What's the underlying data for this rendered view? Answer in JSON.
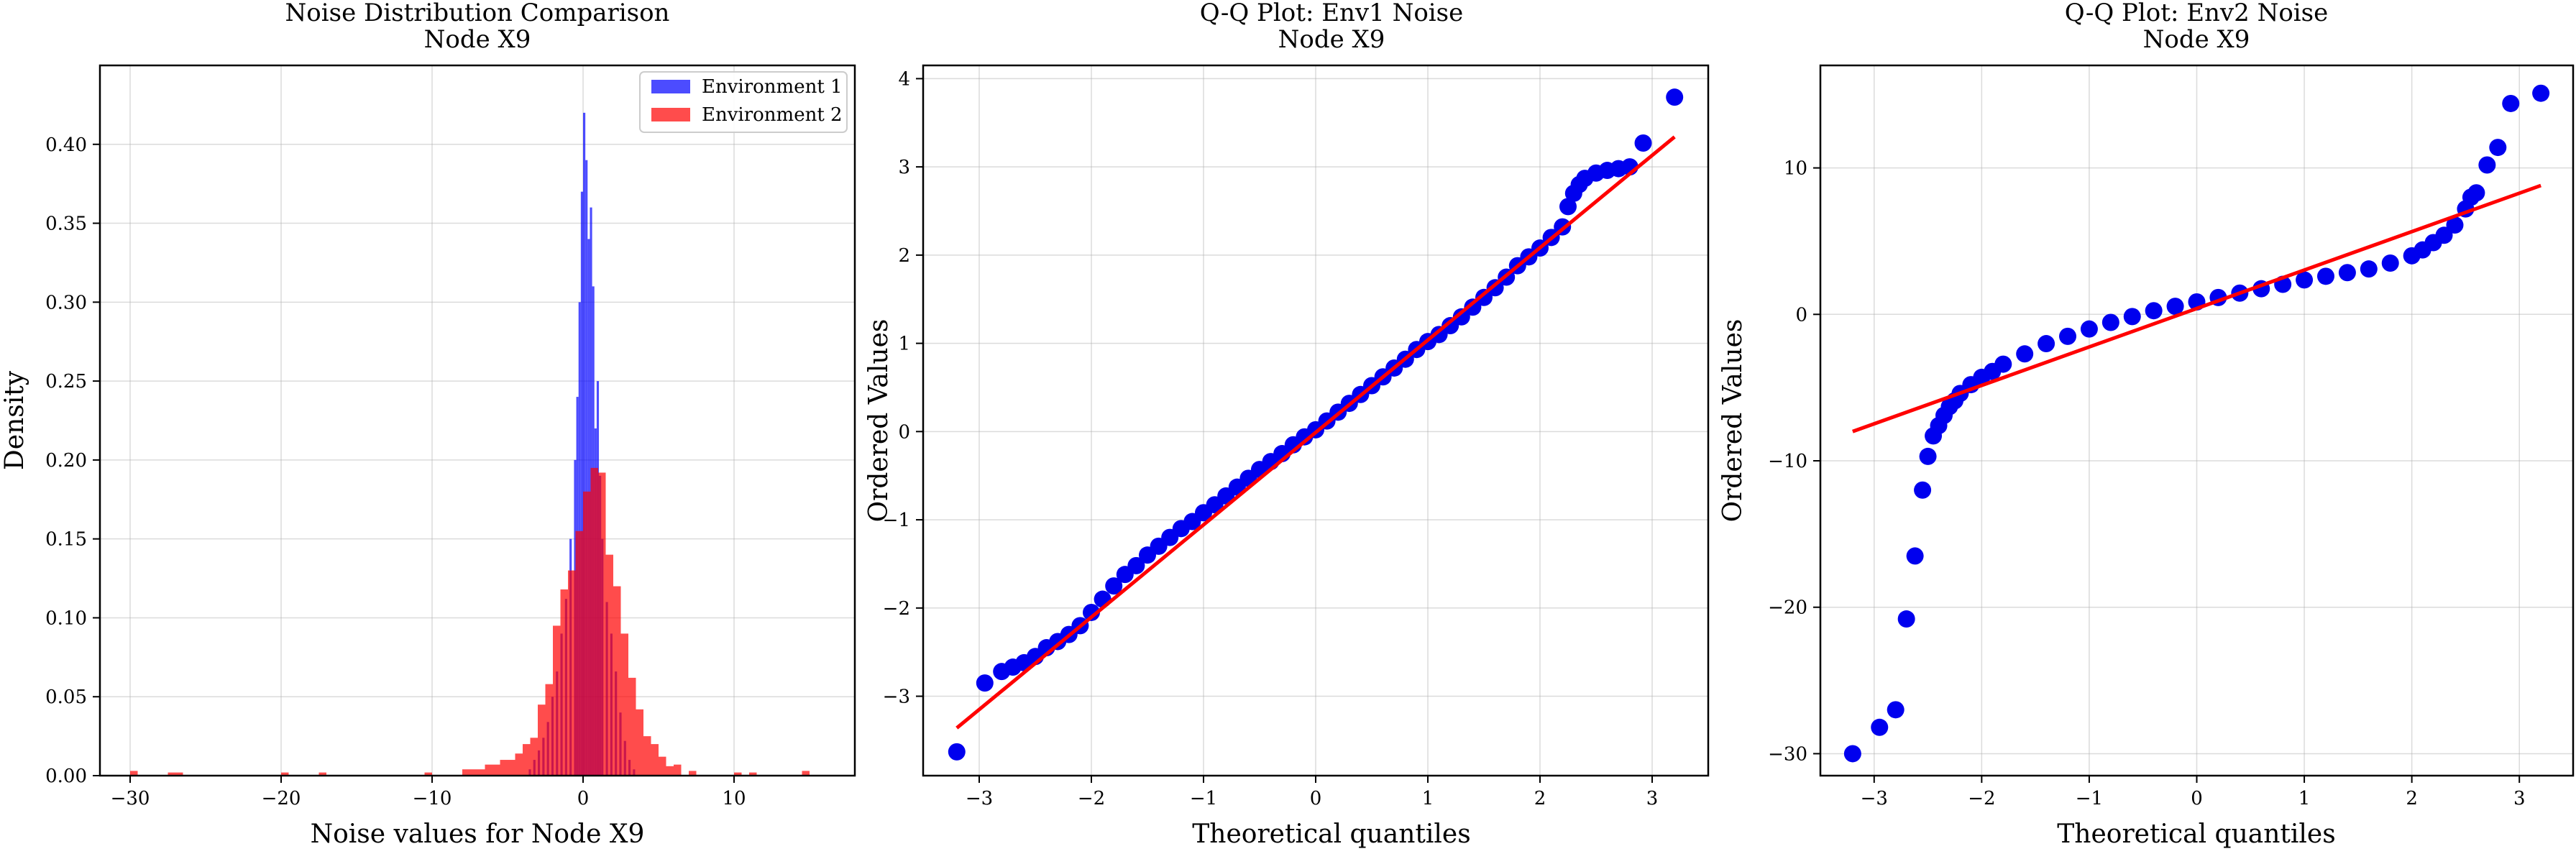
{
  "colors": {
    "env1": "#0000ff",
    "env2": "#ff0000",
    "grid": "#b0b0b0",
    "fit_line": "#ff0000",
    "points": "#0000ee"
  },
  "chart_data": [
    {
      "type": "bar",
      "subtype": "histogram-overlay",
      "title": "Noise Distribution Comparison",
      "subtitle": "Node X9",
      "xlabel": "Noise values for Node X9",
      "ylabel": "Density",
      "xlim": [
        -32,
        18
      ],
      "ylim": [
        0,
        0.45
      ],
      "xticks": [
        -30,
        -20,
        -10,
        0,
        10
      ],
      "xtick_labels": [
        "−30",
        "−20",
        "−10",
        "0",
        "10"
      ],
      "yticks": [
        0.0,
        0.05,
        0.1,
        0.15,
        0.2,
        0.25,
        0.3,
        0.35,
        0.4
      ],
      "ytick_labels": [
        "0.00",
        "0.05",
        "0.10",
        "0.15",
        "0.20",
        "0.25",
        "0.30",
        "0.35",
        "0.40"
      ],
      "grid": true,
      "legend_position": "top-right",
      "series": [
        {
          "name": "Environment 1",
          "color_key": "env1",
          "alpha": 0.7,
          "bins": [
            [
              -3.6,
              0.004
            ],
            [
              -3.3,
              0.01
            ],
            [
              -3.0,
              0.016
            ],
            [
              -2.7,
              0.024
            ],
            [
              -2.4,
              0.034
            ],
            [
              -2.1,
              0.05
            ],
            [
              -1.8,
              0.066
            ],
            [
              -1.5,
              0.09
            ],
            [
              -1.2,
              0.112
            ],
            [
              -0.9,
              0.15
            ],
            [
              -0.6,
              0.2
            ],
            [
              -0.45,
              0.24
            ],
            [
              -0.3,
              0.3
            ],
            [
              -0.15,
              0.37
            ],
            [
              0.0,
              0.42
            ],
            [
              0.15,
              0.39
            ],
            [
              0.3,
              0.34
            ],
            [
              0.45,
              0.36
            ],
            [
              0.6,
              0.31
            ],
            [
              0.75,
              0.22
            ],
            [
              0.9,
              0.25
            ],
            [
              1.05,
              0.19
            ],
            [
              1.2,
              0.15
            ],
            [
              1.5,
              0.11
            ],
            [
              1.8,
              0.09
            ],
            [
              2.1,
              0.066
            ],
            [
              2.4,
              0.04
            ],
            [
              2.7,
              0.022
            ],
            [
              3.0,
              0.01
            ],
            [
              3.3,
              0.004
            ]
          ],
          "bin_width": 0.15
        },
        {
          "name": "Environment 2",
          "color_key": "env2",
          "alpha": 0.7,
          "bins": [
            [
              -30.0,
              0.003
            ],
            [
              -27.5,
              0.002
            ],
            [
              -27.0,
              0.002
            ],
            [
              -20.0,
              0.002
            ],
            [
              -17.5,
              0.002
            ],
            [
              -10.5,
              0.002
            ],
            [
              -8.0,
              0.004
            ],
            [
              -7.5,
              0.004
            ],
            [
              -7.0,
              0.004
            ],
            [
              -6.5,
              0.007
            ],
            [
              -6.0,
              0.007
            ],
            [
              -5.5,
              0.01
            ],
            [
              -5.0,
              0.01
            ],
            [
              -4.5,
              0.014
            ],
            [
              -4.0,
              0.02
            ],
            [
              -3.5,
              0.024
            ],
            [
              -3.0,
              0.045
            ],
            [
              -2.5,
              0.058
            ],
            [
              -2.0,
              0.095
            ],
            [
              -1.5,
              0.118
            ],
            [
              -1.0,
              0.13
            ],
            [
              -0.5,
              0.155
            ],
            [
              0.0,
              0.18
            ],
            [
              0.5,
              0.195
            ],
            [
              1.0,
              0.192
            ],
            [
              1.5,
              0.14
            ],
            [
              2.0,
              0.12
            ],
            [
              2.5,
              0.09
            ],
            [
              3.0,
              0.062
            ],
            [
              3.5,
              0.042
            ],
            [
              4.0,
              0.025
            ],
            [
              4.5,
              0.02
            ],
            [
              5.0,
              0.012
            ],
            [
              5.5,
              0.006
            ],
            [
              6.0,
              0.007
            ],
            [
              7.0,
              0.003
            ],
            [
              10.0,
              0.002
            ],
            [
              11.0,
              0.002
            ],
            [
              14.5,
              0.003
            ]
          ],
          "bin_width": 0.5
        }
      ]
    },
    {
      "type": "scatter",
      "title": "Q-Q Plot: Env1 Noise",
      "subtitle": "Node X9",
      "xlabel": "Theoretical quantiles",
      "ylabel": "Ordered Values",
      "xlim": [
        -3.5,
        3.5
      ],
      "ylim": [
        -3.9,
        4.15
      ],
      "xticks": [
        -3,
        -2,
        -1,
        0,
        1,
        2,
        3
      ],
      "xtick_labels": [
        "−3",
        "−2",
        "−1",
        "0",
        "1",
        "2",
        "3"
      ],
      "yticks": [
        -3,
        -2,
        -1,
        0,
        1,
        2,
        3,
        4
      ],
      "ytick_labels": [
        "−3",
        "−2",
        "−1",
        "0",
        "1",
        "2",
        "3",
        "4"
      ],
      "grid": true,
      "fit_line": {
        "x": [
          -3.2,
          3.2
        ],
        "y": [
          -3.36,
          3.34
        ]
      },
      "points_x": [
        -3.2,
        -2.95,
        -2.8,
        -2.7,
        -2.6,
        -2.5,
        -2.4,
        -2.3,
        -2.2,
        -2.1,
        -2.0,
        -1.9,
        -1.8,
        -1.7,
        -1.6,
        -1.5,
        -1.4,
        -1.3,
        -1.2,
        -1.1,
        -1.0,
        -0.9,
        -0.8,
        -0.7,
        -0.6,
        -0.5,
        -0.4,
        -0.3,
        -0.2,
        -0.1,
        0.0,
        0.1,
        0.2,
        0.3,
        0.4,
        0.5,
        0.6,
        0.7,
        0.8,
        0.9,
        1.0,
        1.1,
        1.2,
        1.3,
        1.4,
        1.5,
        1.6,
        1.7,
        1.8,
        1.9,
        2.0,
        2.1,
        2.2,
        2.25,
        2.3,
        2.35,
        2.4,
        2.5,
        2.6,
        2.7,
        2.8,
        2.92,
        3.2
      ],
      "points_y": [
        -3.63,
        -2.85,
        -2.72,
        -2.67,
        -2.62,
        -2.55,
        -2.45,
        -2.38,
        -2.3,
        -2.2,
        -2.05,
        -1.9,
        -1.75,
        -1.62,
        -1.52,
        -1.4,
        -1.3,
        -1.2,
        -1.1,
        -1.02,
        -0.92,
        -0.83,
        -0.73,
        -0.63,
        -0.53,
        -0.43,
        -0.34,
        -0.25,
        -0.15,
        -0.06,
        0.02,
        0.12,
        0.22,
        0.32,
        0.42,
        0.52,
        0.62,
        0.72,
        0.82,
        0.93,
        1.02,
        1.1,
        1.2,
        1.3,
        1.41,
        1.52,
        1.63,
        1.75,
        1.88,
        1.98,
        2.08,
        2.2,
        2.32,
        2.55,
        2.7,
        2.8,
        2.87,
        2.93,
        2.96,
        2.98,
        3.0,
        3.27,
        3.79
      ]
    },
    {
      "type": "scatter",
      "title": "Q-Q Plot: Env2 Noise",
      "subtitle": "Node X9",
      "xlabel": "Theoretical quantiles",
      "ylabel": "Ordered Values",
      "xlim": [
        -3.5,
        3.5
      ],
      "ylim": [
        -31.5,
        17.0
      ],
      "xticks": [
        -3,
        -2,
        -1,
        0,
        1,
        2,
        3
      ],
      "xtick_labels": [
        "−3",
        "−2",
        "−1",
        "0",
        "1",
        "2",
        "3"
      ],
      "yticks": [
        -30,
        -20,
        -10,
        0,
        10
      ],
      "ytick_labels": [
        "−30",
        "−20",
        "−10",
        "0",
        "10"
      ],
      "grid": true,
      "fit_line": {
        "x": [
          -3.2,
          3.2
        ],
        "y": [
          -8.0,
          8.8
        ]
      },
      "points_x": [
        -3.2,
        -2.95,
        -2.8,
        -2.7,
        -2.62,
        -2.55,
        -2.5,
        -2.45,
        -2.4,
        -2.35,
        -2.3,
        -2.25,
        -2.2,
        -2.1,
        -2.0,
        -1.9,
        -1.8,
        -1.6,
        -1.4,
        -1.2,
        -1.0,
        -0.8,
        -0.6,
        -0.4,
        -0.2,
        0.0,
        0.2,
        0.4,
        0.6,
        0.8,
        1.0,
        1.2,
        1.4,
        1.6,
        1.8,
        2.0,
        2.1,
        2.2,
        2.3,
        2.4,
        2.5,
        2.55,
        2.6,
        2.7,
        2.8,
        2.92,
        3.2
      ],
      "points_y": [
        -30.0,
        -28.2,
        -27.0,
        -20.8,
        -16.5,
        -12.0,
        -9.7,
        -8.3,
        -7.6,
        -6.9,
        -6.3,
        -5.9,
        -5.4,
        -4.8,
        -4.3,
        -3.9,
        -3.4,
        -2.7,
        -2.0,
        -1.5,
        -1.0,
        -0.55,
        -0.15,
        0.25,
        0.55,
        0.85,
        1.15,
        1.45,
        1.75,
        2.05,
        2.35,
        2.6,
        2.85,
        3.1,
        3.5,
        4.0,
        4.4,
        4.9,
        5.4,
        6.1,
        7.2,
        8.0,
        8.3,
        10.2,
        11.4,
        14.4,
        15.1
      ]
    }
  ]
}
